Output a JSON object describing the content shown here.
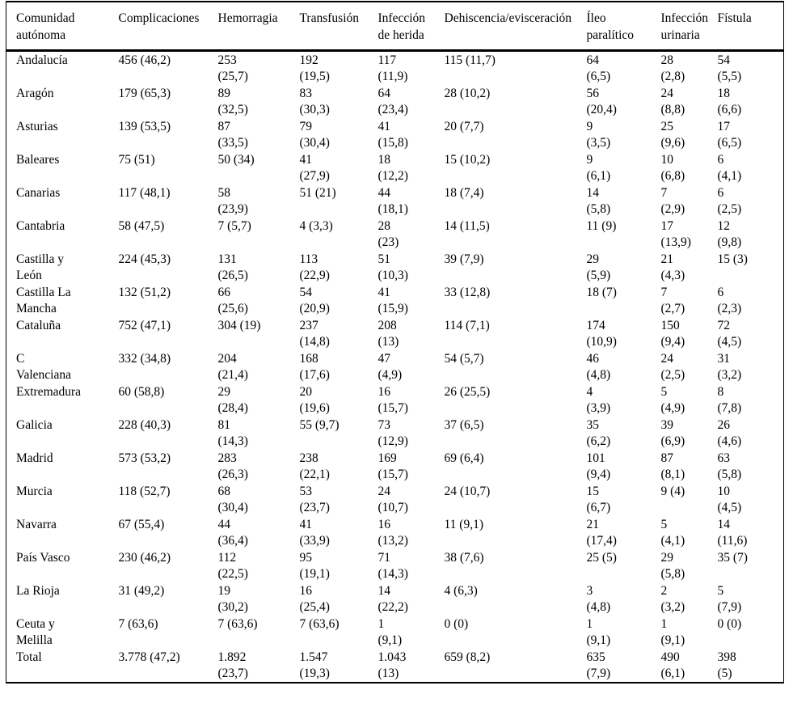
{
  "table": {
    "headers": [
      "Comunidad\nautónoma",
      "Complicaciones",
      "Hemorragia",
      "Transfusión",
      "Infección\nde herida",
      "Dehiscencia/evisceración",
      "Íleo\nparalítico",
      "Infección\nurinaria",
      "Fístula"
    ],
    "rows": [
      [
        "Andalucía",
        "456 (46,2)",
        "253\n(25,7)",
        "192\n(19,5)",
        "117\n(11,9)",
        "115 (11,7)",
        "64\n(6,5)",
        "28\n(2,8)",
        "54\n(5,5)"
      ],
      [
        "Aragón",
        "179 (65,3)",
        "89\n(32,5)",
        "83\n(30,3)",
        "64\n(23,4)",
        "28 (10,2)",
        "56\n(20,4)",
        "24\n(8,8)",
        "18\n(6,6)"
      ],
      [
        "Asturias",
        "139 (53,5)",
        "87\n(33,5)",
        "79\n(30,4)",
        "41\n(15,8)",
        "20 (7,7)",
        "9\n(3,5)",
        "25\n(9,6)",
        "17\n(6,5)"
      ],
      [
        "Baleares",
        "75 (51)",
        "50 (34)",
        "41\n(27,9)",
        "18\n(12,2)",
        "15 (10,2)",
        "9\n(6,1)",
        "10\n(6,8)",
        "6\n(4,1)"
      ],
      [
        "Canarias",
        "117 (48,1)",
        "58\n(23,9)",
        "51 (21)",
        "44\n(18,1)",
        "18 (7,4)",
        "14\n(5,8)",
        "7\n(2,9)",
        "6\n(2,5)"
      ],
      [
        "Cantabria",
        "58 (47,5)",
        "7 (5,7)",
        "4 (3,3)",
        "28\n(23)",
        "14 (11,5)",
        "11 (9)",
        "17\n(13,9)",
        "12\n(9,8)"
      ],
      [
        "Castilla y\nLeón",
        "224 (45,3)",
        "131\n(26,5)",
        "113\n(22,9)",
        "51\n(10,3)",
        "39 (7,9)",
        "29\n(5,9)",
        "21\n(4,3)",
        "15 (3)"
      ],
      [
        "Castilla La\nMancha",
        "132 (51,2)",
        "66\n(25,6)",
        "54\n(20,9)",
        "41\n(15,9)",
        "33 (12,8)",
        "18 (7)",
        "7\n(2,7)",
        "6\n(2,3)"
      ],
      [
        "Cataluña",
        "752 (47,1)",
        "304 (19)",
        "237\n(14,8)",
        "208\n(13)",
        "114 (7,1)",
        "174\n(10,9)",
        "150\n(9,4)",
        "72\n(4,5)"
      ],
      [
        "C\nValenciana",
        "332 (34,8)",
        "204\n(21,4)",
        "168\n(17,6)",
        "47\n(4,9)",
        "54 (5,7)",
        "46\n(4,8)",
        "24\n(2,5)",
        "31\n(3,2)"
      ],
      [
        "Extremadura",
        "60 (58,8)",
        "29\n(28,4)",
        "20\n(19,6)",
        "16\n(15,7)",
        "26 (25,5)",
        "4\n(3,9)",
        "5\n(4,9)",
        "8\n(7,8)"
      ],
      [
        "Galicia",
        "228 (40,3)",
        "81\n(14,3)",
        "55 (9,7)",
        "73\n(12,9)",
        "37 (6,5)",
        "35\n(6,2)",
        "39\n(6,9)",
        "26\n(4,6)"
      ],
      [
        "Madrid",
        "573 (53,2)",
        "283\n(26,3)",
        "238\n(22,1)",
        "169\n(15,7)",
        "69 (6,4)",
        "101\n(9,4)",
        "87\n(8,1)",
        "63\n(5,8)"
      ],
      [
        "Murcia",
        "118 (52,7)",
        "68\n(30,4)",
        "53\n(23,7)",
        "24\n(10,7)",
        "24 (10,7)",
        "15\n(6,7)",
        "9 (4)",
        "10\n(4,5)"
      ],
      [
        "Navarra",
        "67 (55,4)",
        "44\n(36,4)",
        "41\n(33,9)",
        "16\n(13,2)",
        "11 (9,1)",
        "21\n(17,4)",
        "5\n(4,1)",
        "14\n(11,6)"
      ],
      [
        "País Vasco",
        "230 (46,2)",
        "112\n(22,5)",
        "95\n(19,1)",
        "71\n(14,3)",
        "38 (7,6)",
        "25 (5)",
        "29\n(5,8)",
        "35 (7)"
      ],
      [
        "La Rioja",
        "31 (49,2)",
        "19\n(30,2)",
        "16\n(25,4)",
        "14\n(22,2)",
        "4 (6,3)",
        "3\n(4,8)",
        "2\n(3,2)",
        "5\n(7,9)"
      ],
      [
        "Ceuta y\nMelilla",
        "7 (63,6)",
        "7 (63,6)",
        "7 (63,6)",
        "1\n(9,1)",
        "0 (0)",
        "1\n(9,1)",
        "1\n(9,1)",
        "0 (0)"
      ],
      [
        "Total",
        "3.778 (47,2)",
        "1.892\n(23,7)",
        "1.547\n(19,3)",
        "1.043\n(13)",
        "659 (8,2)",
        "635\n(7,9)",
        "490\n(6,1)",
        "398\n(5)"
      ]
    ]
  }
}
